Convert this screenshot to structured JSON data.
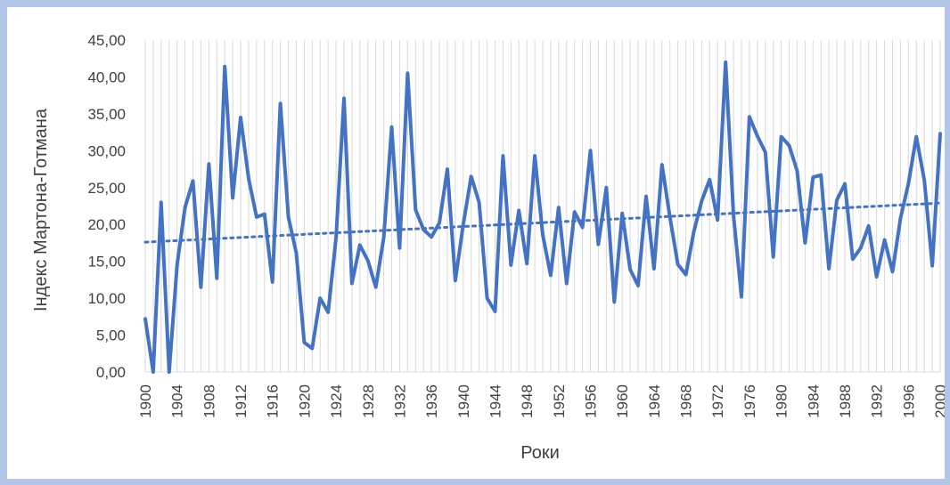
{
  "colors": {
    "page_background": "#b4c6e7",
    "plot_background": "#ffffff",
    "series": "#4472c4",
    "grid": "#d9d9d9",
    "text": "#404040"
  },
  "chart_data": {
    "type": "line",
    "title": "",
    "xlabel": "Роки",
    "ylabel": "Індекс Мартона-Готмана",
    "ylim": [
      0,
      45
    ],
    "xlim": [
      1900,
      2000
    ],
    "grid": {
      "vertical": true,
      "horizontal": false
    },
    "legend": "none",
    "y_ticks": [
      "0,00",
      "5,00",
      "10,00",
      "15,00",
      "20,00",
      "25,00",
      "30,00",
      "35,00",
      "40,00",
      "45,00"
    ],
    "x_ticks": [
      "1900",
      "1904",
      "1908",
      "1912",
      "1916",
      "1920",
      "1924",
      "1928",
      "1932",
      "1936",
      "1940",
      "1944",
      "1948",
      "1952",
      "1956",
      "1960",
      "1964",
      "1968",
      "1972",
      "1976",
      "1980",
      "1984",
      "1988",
      "1992",
      "1996",
      "2000"
    ],
    "series": [
      {
        "style": "solid",
        "x_start": 1900,
        "x_step": 1,
        "values": [
          7.2,
          0.0,
          23.0,
          0.0,
          14.5,
          22.3,
          25.9,
          11.5,
          28.2,
          12.7,
          41.4,
          23.6,
          34.5,
          26.2,
          21.0,
          21.4,
          12.2,
          36.4,
          21.0,
          16.1,
          4.0,
          3.2,
          10.0,
          8.1,
          18.2,
          37.1,
          12.0,
          17.2,
          15.1,
          11.5,
          18.2,
          33.2,
          16.8,
          40.5,
          22.0,
          19.3,
          18.3,
          20.2,
          27.5,
          12.4,
          20.0,
          26.5,
          23.0,
          10.0,
          8.2,
          29.3,
          14.5,
          21.9,
          14.7,
          29.3,
          18.6,
          13.1,
          22.3,
          12.0,
          21.7,
          19.6,
          30.0,
          17.3,
          25.0,
          9.5,
          21.5,
          13.9,
          11.7,
          23.8,
          14.0,
          28.1,
          21.0,
          14.6,
          13.2,
          19.0,
          23.2,
          26.1,
          20.6,
          42.0,
          21.2,
          10.2,
          34.6,
          32.0,
          29.8,
          15.6,
          31.9,
          30.7,
          27.3,
          17.5,
          26.4,
          26.7,
          14.0,
          23.3,
          25.5,
          15.3,
          16.8,
          19.8,
          12.9,
          17.9,
          13.6,
          20.8,
          25.5,
          31.9,
          26.0,
          14.4,
          32.3
        ]
      },
      {
        "style": "dotted",
        "x": [
          1900,
          2000
        ],
        "values": [
          17.6,
          22.9
        ]
      }
    ]
  }
}
